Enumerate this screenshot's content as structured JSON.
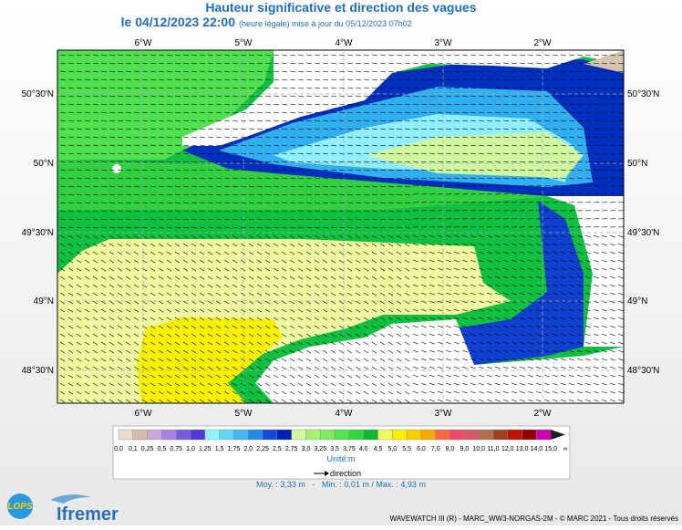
{
  "header": {
    "title": "Hauteur significative et direction des vagues",
    "date": "le 04/12/2023 22:00",
    "update": "(heure légale) mise à jour du 05/12/2023 07h02"
  },
  "map": {
    "lon_labels": [
      "6°W",
      "5°W",
      "4°W",
      "3°W",
      "2°W"
    ],
    "lat_labels": [
      "50°30'N",
      "50°N",
      "49°30'N",
      "49°N",
      "48°30'N"
    ]
  },
  "legend": {
    "labels": [
      "0,0",
      "0,1",
      "0,25",
      "0,5",
      "0,75",
      "1,0",
      "1,25",
      "1,5",
      "1,75",
      "2,0",
      "2,25",
      "2,5",
      "2,75",
      "3,0",
      "3,25",
      "3,5",
      "3,75",
      "4,0",
      "4,5",
      "5,0",
      "5,5",
      "6,0",
      "7,0",
      "8,0",
      "9,0",
      "10,0",
      "11,0",
      "12,0",
      "13,0",
      "14,0",
      "15,0",
      "∞"
    ],
    "colors": [
      "#e8dccc",
      "#d2bca8",
      "#c8a8d8",
      "#a884e0",
      "#7a5ad8",
      "#5038d8",
      "#90f4ff",
      "#60d8f8",
      "#40b8f0",
      "#2088e8",
      "#1048d8",
      "#0020b8",
      "#d0f8a0",
      "#a8f070",
      "#80ec60",
      "#50e450",
      "#30d840",
      "#10b830",
      "#f0f860",
      "#f8f000",
      "#f8d000",
      "#f8a800",
      "#f86848",
      "#f04868",
      "#d85868",
      "#b07050",
      "#a04020",
      "#c01000",
      "#900000",
      "#d000b0",
      "#202020"
    ],
    "unit": "Unité:m",
    "direction": "direction",
    "stats": "Moy. : 3,33 m   -   Min. : 0,01 m / Max. : 4,93 m"
  },
  "footer": {
    "logo1": "LOPS",
    "logo2": "Ifremer",
    "credits": "WAVEWATCH III (R) - MARC_WW3-NORGAS-2M - © MARC 2021 - Tous droits réservés"
  }
}
